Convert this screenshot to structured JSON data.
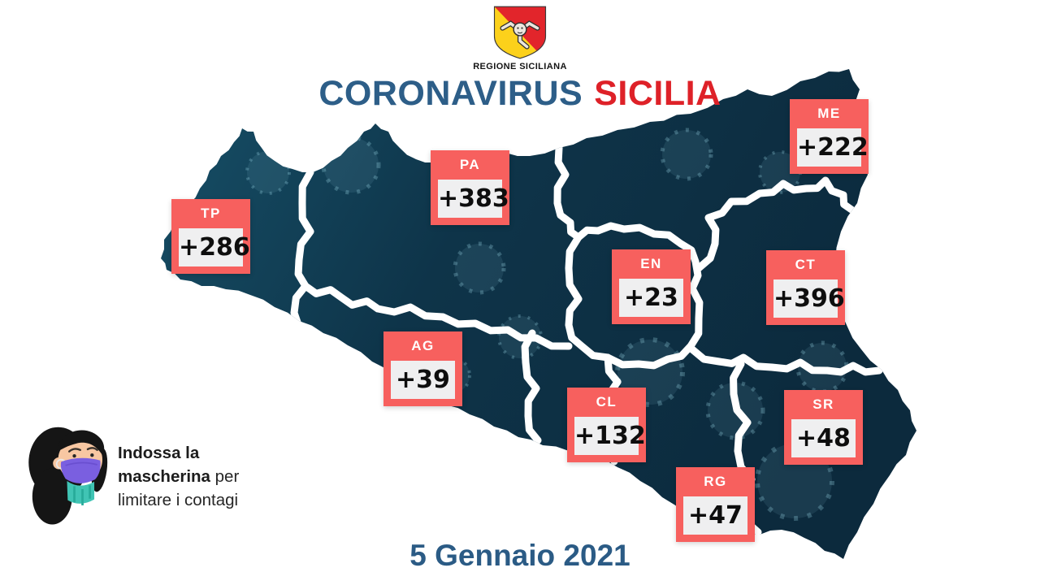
{
  "logo": {
    "org": "REGIONE SICILIANA"
  },
  "title": {
    "word1": "CORONAVIRUS",
    "word2": "SICILIA"
  },
  "provinces": [
    {
      "code": "TP",
      "value": "+286"
    },
    {
      "code": "PA",
      "value": "+383"
    },
    {
      "code": "ME",
      "value": "+222"
    },
    {
      "code": "EN",
      "value": "+23"
    },
    {
      "code": "CT",
      "value": "+396"
    },
    {
      "code": "AG",
      "value": "+39"
    },
    {
      "code": "CL",
      "value": "+132"
    },
    {
      "code": "SR",
      "value": "+48"
    },
    {
      "code": "RG",
      "value": "+47"
    }
  ],
  "mask_message": {
    "line1_bold": "Indossa la",
    "line2_bold": "mascherina",
    "line2_regular": " per",
    "line3_regular": "limitare i contagi"
  },
  "date_label": "5 Gennaio 2021",
  "colors": {
    "card_accent": "#f7605e",
    "card_inner": "#efeff0",
    "map_navy": "#0d3044",
    "map_teal": "#175068",
    "title_blue": "#2d5e88",
    "title_red": "#de2128",
    "date_blue": "#2b5b85",
    "mask_purple": "#7a5fe0",
    "scarf_teal": "#40c4b4",
    "flag_yellow": "#fcd11b",
    "flag_red": "#e2252b"
  }
}
